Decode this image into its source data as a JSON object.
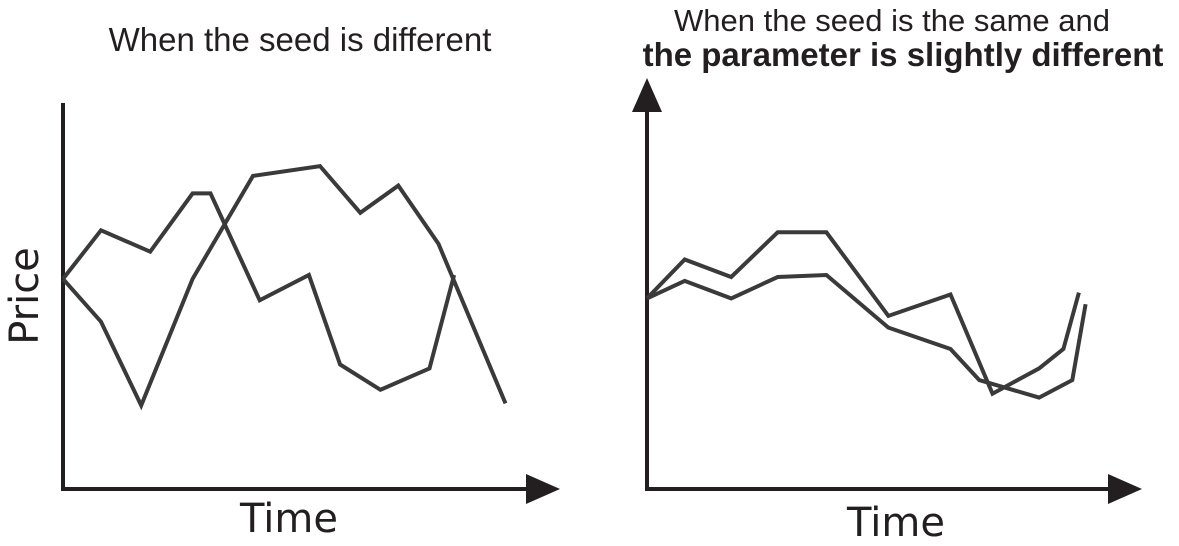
{
  "chart_data": [
    {
      "type": "line",
      "title": "When the seed is different",
      "subtitle": "",
      "xlabel": "Time",
      "ylabel": "Price",
      "grid": false,
      "legend": "none",
      "colors": {
        "axis": "#231f20",
        "lines": "#3a3a3a"
      },
      "xlim": [
        0,
        10
      ],
      "ylim": [
        0,
        10
      ],
      "series": [
        {
          "x": [
            0,
            0.85,
            1.95,
            2.9,
            3.3,
            4.4,
            5.5,
            6.2,
            7.1,
            8.2,
            8.75
          ],
          "values": [
            5.4,
            6.65,
            6.1,
            7.6,
            7.6,
            4.85,
            5.5,
            3.2,
            2.55,
            3.1,
            5.5
          ]
        },
        {
          "x": [
            0,
            0.85,
            1.75,
            2.9,
            4.25,
            5.75,
            6.65,
            7.5,
            8.4,
            9.9
          ],
          "values": [
            5.4,
            4.3,
            2.15,
            5.4,
            8.05,
            8.3,
            7.1,
            7.8,
            6.3,
            2.2
          ]
        }
      ]
    },
    {
      "type": "line",
      "title": "When the seed is the same and",
      "subtitle": "the parameter is slightly different",
      "xlabel": "Time",
      "ylabel": "",
      "grid": false,
      "legend": "none",
      "colors": {
        "axis": "#231f20",
        "lines": "#3a3a3a"
      },
      "xlim": [
        0,
        10
      ],
      "ylim": [
        0,
        10
      ],
      "series": [
        {
          "x": [
            0,
            0.85,
            1.9,
            2.95,
            4.05,
            5.45,
            6.85,
            7.8,
            8.85,
            9.4,
            9.75
          ],
          "values": [
            4.9,
            5.9,
            5.45,
            6.6,
            6.6,
            4.45,
            5.0,
            2.45,
            3.1,
            3.6,
            5.05
          ]
        },
        {
          "x": [
            0,
            0.85,
            1.9,
            2.95,
            4.05,
            5.45,
            6.85,
            7.5,
            8.85,
            9.6,
            9.9
          ],
          "values": [
            4.9,
            5.35,
            4.9,
            5.45,
            5.5,
            4.15,
            3.6,
            2.8,
            2.35,
            2.8,
            4.75
          ]
        }
      ]
    }
  ]
}
